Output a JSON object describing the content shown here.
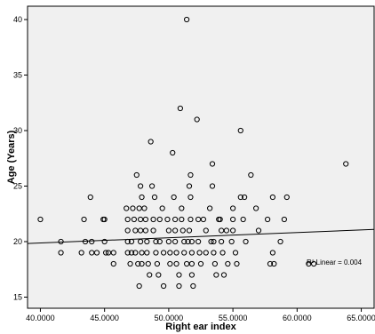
{
  "chart_data": {
    "type": "scatter",
    "xlabel": "Right ear index",
    "ylabel": "Age (Years)",
    "xlim": [
      39.0,
      66.0
    ],
    "ylim": [
      14.0,
      41.2
    ],
    "x_ticks": [
      "40.0000",
      "45.0000",
      "50.0000",
      "55.0000",
      "60.0000",
      "65.0000"
    ],
    "x_tick_values": [
      40,
      45,
      50,
      55,
      60,
      65
    ],
    "y_ticks": [
      "15",
      "20",
      "25",
      "30",
      "35",
      "40"
    ],
    "y_tick_values": [
      15,
      20,
      25,
      30,
      35,
      40
    ],
    "grid": false,
    "legend": "none",
    "annotation": "R² Linear = 0.004",
    "fit_line": {
      "x": [
        39.0,
        66.0
      ],
      "y": [
        19.83,
        21.1
      ]
    },
    "points": [
      [
        40.0,
        22
      ],
      [
        41.6,
        20
      ],
      [
        41.6,
        19
      ],
      [
        43.2,
        19
      ],
      [
        43.4,
        22
      ],
      [
        43.5,
        20
      ],
      [
        43.9,
        24
      ],
      [
        44.0,
        20
      ],
      [
        44.0,
        19
      ],
      [
        44.4,
        19
      ],
      [
        44.9,
        22
      ],
      [
        45.0,
        20
      ],
      [
        45.1,
        19
      ],
      [
        45.3,
        19
      ],
      [
        45.7,
        19
      ],
      [
        45.7,
        18
      ],
      [
        45.0,
        22
      ],
      [
        46.7,
        23
      ],
      [
        46.8,
        22
      ],
      [
        46.8,
        21
      ],
      [
        46.8,
        20
      ],
      [
        46.8,
        19
      ],
      [
        47.0,
        18
      ],
      [
        47.1,
        20
      ],
      [
        47.1,
        19
      ],
      [
        47.2,
        23
      ],
      [
        47.3,
        22
      ],
      [
        47.4,
        21
      ],
      [
        47.4,
        19
      ],
      [
        47.6,
        18
      ],
      [
        47.7,
        23
      ],
      [
        47.8,
        22
      ],
      [
        47.8,
        21
      ],
      [
        47.8,
        20
      ],
      [
        47.9,
        19
      ],
      [
        47.9,
        18
      ],
      [
        47.5,
        26
      ],
      [
        47.8,
        25
      ],
      [
        47.9,
        24
      ],
      [
        47.7,
        16
      ],
      [
        48.1,
        23
      ],
      [
        48.2,
        22
      ],
      [
        48.2,
        21
      ],
      [
        48.3,
        20
      ],
      [
        48.3,
        19
      ],
      [
        48.4,
        18
      ],
      [
        48.5,
        17
      ],
      [
        48.6,
        29
      ],
      [
        48.7,
        25
      ],
      [
        48.9,
        24
      ],
      [
        48.8,
        22
      ],
      [
        48.8,
        21
      ],
      [
        49.0,
        20
      ],
      [
        49.0,
        19
      ],
      [
        49.1,
        18
      ],
      [
        49.2,
        17
      ],
      [
        49.3,
        22
      ],
      [
        49.3,
        20
      ],
      [
        49.5,
        23
      ],
      [
        49.6,
        16
      ],
      [
        49.6,
        19
      ],
      [
        49.9,
        22
      ],
      [
        50.0,
        21
      ],
      [
        50.0,
        20
      ],
      [
        50.1,
        19
      ],
      [
        50.1,
        18
      ],
      [
        50.3,
        28
      ],
      [
        50.4,
        24
      ],
      [
        50.5,
        22
      ],
      [
        50.5,
        21
      ],
      [
        50.5,
        20
      ],
      [
        50.6,
        19
      ],
      [
        50.6,
        18
      ],
      [
        50.8,
        17
      ],
      [
        50.8,
        16
      ],
      [
        50.9,
        32
      ],
      [
        51.0,
        23
      ],
      [
        51.0,
        22
      ],
      [
        51.1,
        21
      ],
      [
        51.2,
        20
      ],
      [
        51.2,
        19
      ],
      [
        51.4,
        40
      ],
      [
        51.4,
        18
      ],
      [
        51.5,
        20
      ],
      [
        51.6,
        25
      ],
      [
        51.6,
        21
      ],
      [
        51.7,
        26
      ],
      [
        51.7,
        24
      ],
      [
        51.7,
        22
      ],
      [
        51.8,
        20
      ],
      [
        51.8,
        19
      ],
      [
        51.8,
        18
      ],
      [
        51.8,
        17
      ],
      [
        51.9,
        16
      ],
      [
        52.2,
        31
      ],
      [
        52.3,
        22
      ],
      [
        52.3,
        20
      ],
      [
        52.4,
        19
      ],
      [
        52.5,
        18
      ],
      [
        52.7,
        22
      ],
      [
        52.9,
        21
      ],
      [
        52.9,
        19
      ],
      [
        53.2,
        23
      ],
      [
        53.3,
        20
      ],
      [
        53.4,
        27
      ],
      [
        53.4,
        25
      ],
      [
        53.5,
        20
      ],
      [
        53.5,
        19
      ],
      [
        53.6,
        18
      ],
      [
        53.7,
        17
      ],
      [
        53.9,
        22
      ],
      [
        54.0,
        22
      ],
      [
        54.1,
        21
      ],
      [
        54.1,
        20
      ],
      [
        54.2,
        19
      ],
      [
        54.3,
        17
      ],
      [
        54.5,
        21
      ],
      [
        54.6,
        18
      ],
      [
        54.9,
        20
      ],
      [
        55.0,
        23
      ],
      [
        55.0,
        22
      ],
      [
        55.0,
        21
      ],
      [
        55.2,
        19
      ],
      [
        55.3,
        18
      ],
      [
        55.6,
        30
      ],
      [
        55.6,
        24
      ],
      [
        55.8,
        22
      ],
      [
        55.9,
        24
      ],
      [
        56.0,
        20
      ],
      [
        56.4,
        26
      ],
      [
        56.8,
        23
      ],
      [
        57.0,
        21
      ],
      [
        57.7,
        22
      ],
      [
        57.9,
        18
      ],
      [
        58.1,
        24
      ],
      [
        58.1,
        19
      ],
      [
        58.2,
        18
      ],
      [
        58.7,
        20
      ],
      [
        59.0,
        22
      ],
      [
        59.2,
        24
      ],
      [
        60.9,
        18
      ],
      [
        61.3,
        18
      ],
      [
        63.8,
        27
      ]
    ]
  }
}
